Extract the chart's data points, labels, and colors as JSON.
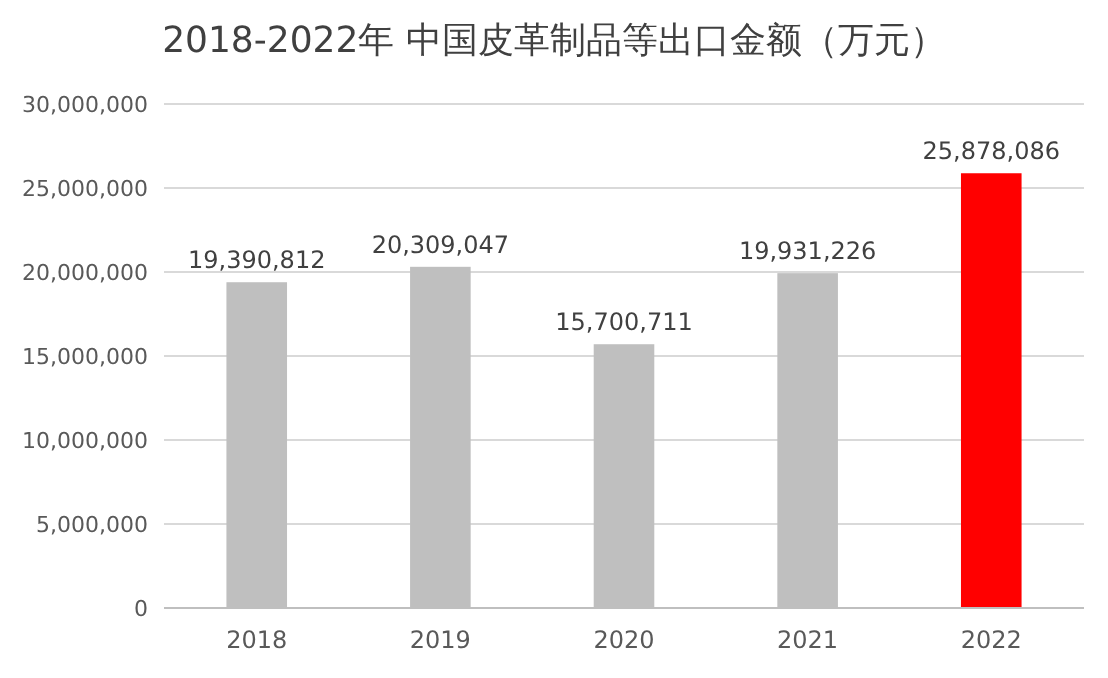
{
  "chart_data": {
    "type": "bar",
    "title": "2018-2022年 中国皮革制品等出口金额（万元）",
    "categories": [
      "2018",
      "2019",
      "2020",
      "2021",
      "2022"
    ],
    "values": [
      19390812,
      20309047,
      15700711,
      19931226,
      25878086
    ],
    "colors": [
      "#bfbfbf",
      "#bfbfbf",
      "#bfbfbf",
      "#bfbfbf",
      "#ff0000"
    ],
    "value_labels": [
      "19,390,812",
      "20,309,047",
      "15,700,711",
      "19,931,226",
      "25,878,086"
    ],
    "ylim": [
      0,
      30000000
    ],
    "yticks": [
      {
        "value": 0,
        "label": "0"
      },
      {
        "value": 5000000,
        "label": "5,000,000"
      },
      {
        "value": 10000000,
        "label": "10,000,000"
      },
      {
        "value": 15000000,
        "label": "15,000,000"
      },
      {
        "value": 20000000,
        "label": "20,000,000"
      },
      {
        "value": 25000000,
        "label": "25,000,000"
      },
      {
        "value": 30000000,
        "label": "30,000,000"
      }
    ],
    "grid": "y"
  }
}
